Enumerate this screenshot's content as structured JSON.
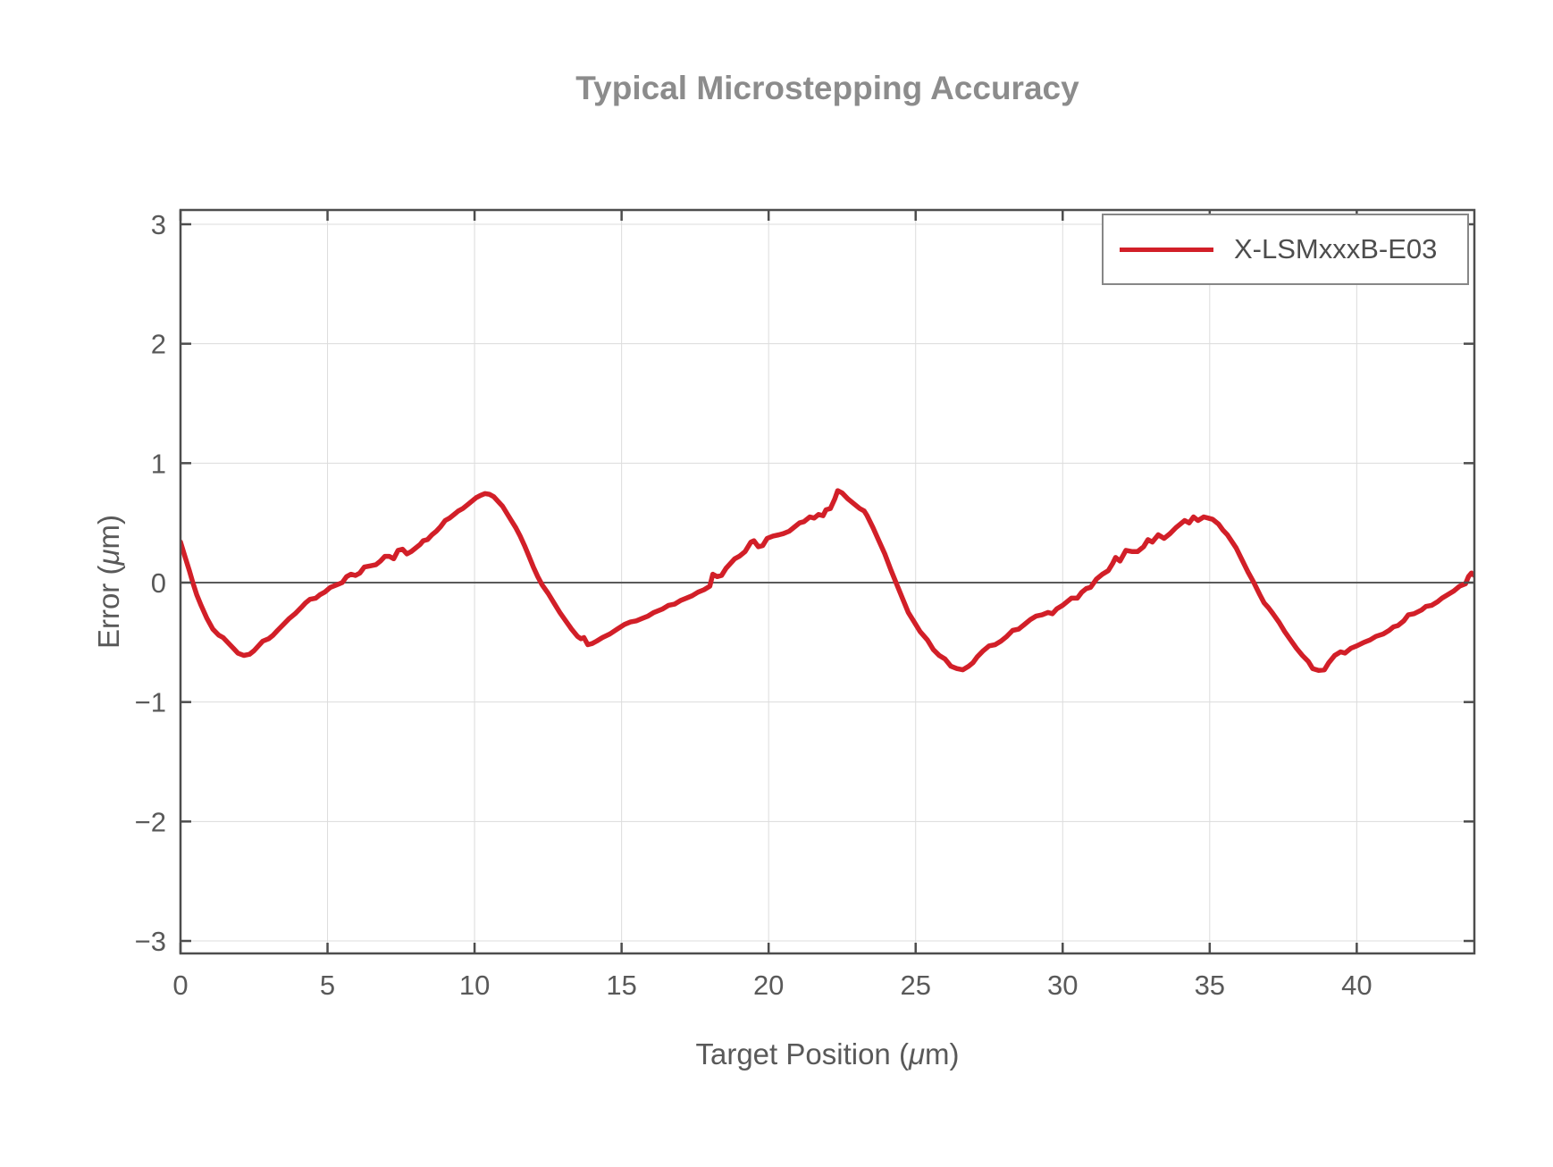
{
  "title": "Typical Microstepping Accuracy",
  "colors": {
    "series_red": "#d21f28",
    "axis": "#4d4d4d",
    "grid": "#dcdcdc",
    "zero_line": "#5a5a5a",
    "title_text": "#8c8c8c",
    "label_text": "#595959",
    "tick_text": "#595959",
    "legend_text": "#4d4d4d",
    "legend_border": "#878787"
  },
  "legend": {
    "entries": [
      {
        "label": "X-LSMxxxB-E03",
        "color": "#d21f28"
      }
    ],
    "position": "top-right"
  },
  "chart_data": {
    "type": "line",
    "title": "Typical Microstepping Accuracy",
    "xlabel": "Target Position (μm)",
    "ylabel": "Error (μm)",
    "xlim": [
      0,
      44
    ],
    "ylim": [
      -3.1,
      3.1
    ],
    "x_ticks": [
      0,
      5,
      10,
      15,
      20,
      25,
      30,
      35,
      40
    ],
    "y_ticks": [
      -3,
      -2,
      -1,
      0,
      1,
      2,
      3
    ],
    "grid": true,
    "legend_position": "top-right",
    "series": [
      {
        "name": "X-LSMxxxB-E03",
        "color": "#d21f28",
        "x": [
          0.0,
          0.15,
          0.3,
          0.42,
          0.55,
          0.7,
          0.9,
          1.1,
          1.3,
          1.45,
          1.6,
          1.8,
          1.95,
          2.15,
          2.35,
          2.5,
          2.65,
          2.8,
          3.0,
          3.15,
          3.3,
          3.5,
          3.7,
          3.9,
          4.1,
          4.25,
          4.4,
          4.6,
          4.75,
          4.9,
          5.1,
          5.3,
          5.5,
          5.65,
          5.8,
          5.95,
          6.1,
          6.25,
          6.45,
          6.65,
          6.8,
          6.95,
          7.1,
          7.25,
          7.4,
          7.55,
          7.7,
          7.85,
          8.0,
          8.15,
          8.25,
          8.4,
          8.55,
          8.7,
          8.85,
          9.0,
          9.15,
          9.3,
          9.45,
          9.6,
          9.75,
          9.9,
          10.05,
          10.2,
          10.35,
          10.5,
          10.65,
          10.8,
          10.95,
          11.1,
          11.25,
          11.4,
          11.55,
          11.7,
          11.85,
          12.0,
          12.15,
          12.3,
          12.5,
          12.7,
          12.9,
          13.1,
          13.3,
          13.5,
          13.62,
          13.72,
          13.85,
          14.0,
          14.15,
          14.35,
          14.6,
          14.85,
          15.1,
          15.3,
          15.5,
          15.7,
          15.9,
          16.1,
          16.4,
          16.6,
          16.8,
          17.0,
          17.2,
          17.4,
          17.6,
          17.8,
          18.0,
          18.1,
          18.25,
          18.4,
          18.55,
          18.7,
          18.85,
          19.0,
          19.2,
          19.4,
          19.5,
          19.65,
          19.8,
          19.95,
          20.15,
          20.35,
          20.5,
          20.7,
          20.9,
          21.05,
          21.2,
          21.4,
          21.55,
          21.7,
          21.85,
          21.95,
          22.1,
          22.25,
          22.35,
          22.5,
          22.7,
          22.9,
          23.1,
          23.25,
          23.35,
          23.55,
          23.75,
          23.95,
          24.15,
          24.35,
          24.55,
          24.75,
          24.95,
          25.15,
          25.4,
          25.6,
          25.8,
          26.0,
          26.2,
          26.4,
          26.6,
          26.8,
          26.95,
          27.1,
          27.3,
          27.5,
          27.7,
          27.9,
          28.1,
          28.3,
          28.5,
          28.7,
          28.9,
          29.1,
          29.3,
          29.5,
          29.65,
          29.8,
          30.0,
          30.15,
          30.3,
          30.5,
          30.65,
          30.8,
          30.95,
          31.15,
          31.35,
          31.55,
          31.7,
          31.8,
          31.95,
          32.15,
          32.35,
          32.55,
          32.75,
          32.9,
          33.05,
          33.25,
          33.45,
          33.65,
          33.85,
          34.0,
          34.15,
          34.3,
          34.45,
          34.6,
          34.8,
          34.95,
          35.1,
          35.3,
          35.45,
          35.6,
          35.9,
          36.1,
          36.3,
          36.5,
          36.7,
          36.85,
          37.0,
          37.15,
          37.35,
          37.55,
          37.75,
          37.95,
          38.15,
          38.35,
          38.5,
          38.7,
          38.9,
          39.05,
          39.25,
          39.45,
          39.6,
          39.8,
          40.0,
          40.25,
          40.45,
          40.65,
          40.9,
          41.1,
          41.25,
          41.4,
          41.6,
          41.75,
          41.95,
          42.2,
          42.35,
          42.55,
          42.75,
          42.9,
          43.1,
          43.3,
          43.5,
          43.7,
          43.8,
          43.9,
          44.0
        ],
        "y": [
          0.34,
          0.22,
          0.1,
          0.0,
          -0.1,
          -0.19,
          -0.3,
          -0.39,
          -0.44,
          -0.46,
          -0.5,
          -0.55,
          -0.59,
          -0.61,
          -0.6,
          -0.57,
          -0.53,
          -0.49,
          -0.47,
          -0.44,
          -0.4,
          -0.35,
          -0.3,
          -0.26,
          -0.21,
          -0.17,
          -0.14,
          -0.13,
          -0.1,
          -0.08,
          -0.04,
          -0.02,
          0.0,
          0.05,
          0.07,
          0.06,
          0.08,
          0.13,
          0.14,
          0.15,
          0.18,
          0.22,
          0.22,
          0.2,
          0.27,
          0.28,
          0.24,
          0.26,
          0.29,
          0.32,
          0.35,
          0.36,
          0.4,
          0.43,
          0.47,
          0.52,
          0.54,
          0.57,
          0.6,
          0.62,
          0.65,
          0.68,
          0.71,
          0.73,
          0.745,
          0.74,
          0.72,
          0.68,
          0.64,
          0.58,
          0.52,
          0.46,
          0.39,
          0.31,
          0.22,
          0.13,
          0.05,
          -0.02,
          -0.09,
          -0.17,
          -0.25,
          -0.32,
          -0.39,
          -0.45,
          -0.47,
          -0.46,
          -0.52,
          -0.51,
          -0.49,
          -0.46,
          -0.43,
          -0.39,
          -0.35,
          -0.33,
          -0.32,
          -0.3,
          -0.28,
          -0.25,
          -0.22,
          -0.19,
          -0.18,
          -0.15,
          -0.13,
          -0.11,
          -0.08,
          -0.06,
          -0.03,
          0.07,
          0.05,
          0.06,
          0.12,
          0.16,
          0.2,
          0.22,
          0.26,
          0.34,
          0.35,
          0.3,
          0.31,
          0.37,
          0.39,
          0.4,
          0.41,
          0.43,
          0.47,
          0.5,
          0.51,
          0.55,
          0.54,
          0.57,
          0.56,
          0.61,
          0.62,
          0.7,
          0.77,
          0.75,
          0.7,
          0.66,
          0.62,
          0.6,
          0.56,
          0.46,
          0.35,
          0.24,
          0.11,
          -0.01,
          -0.13,
          -0.25,
          -0.33,
          -0.41,
          -0.48,
          -0.56,
          -0.61,
          -0.64,
          -0.7,
          -0.72,
          -0.73,
          -0.7,
          -0.67,
          -0.62,
          -0.57,
          -0.53,
          -0.52,
          -0.49,
          -0.45,
          -0.4,
          -0.39,
          -0.35,
          -0.31,
          -0.28,
          -0.27,
          -0.25,
          -0.26,
          -0.22,
          -0.19,
          -0.16,
          -0.13,
          -0.13,
          -0.08,
          -0.05,
          -0.04,
          0.03,
          0.07,
          0.1,
          0.16,
          0.21,
          0.18,
          0.27,
          0.26,
          0.26,
          0.3,
          0.36,
          0.34,
          0.4,
          0.37,
          0.41,
          0.46,
          0.49,
          0.52,
          0.5,
          0.55,
          0.52,
          0.55,
          0.54,
          0.53,
          0.49,
          0.44,
          0.4,
          0.29,
          0.19,
          0.09,
          0.0,
          -0.1,
          -0.17,
          -0.21,
          -0.26,
          -0.33,
          -0.41,
          -0.48,
          -0.55,
          -0.61,
          -0.66,
          -0.72,
          -0.735,
          -0.73,
          -0.67,
          -0.61,
          -0.58,
          -0.59,
          -0.55,
          -0.53,
          -0.5,
          -0.48,
          -0.45,
          -0.43,
          -0.4,
          -0.37,
          -0.36,
          -0.32,
          -0.27,
          -0.26,
          -0.23,
          -0.2,
          -0.19,
          -0.16,
          -0.13,
          -0.1,
          -0.07,
          -0.03,
          -0.01,
          0.05,
          0.08,
          0.06
        ]
      }
    ]
  }
}
